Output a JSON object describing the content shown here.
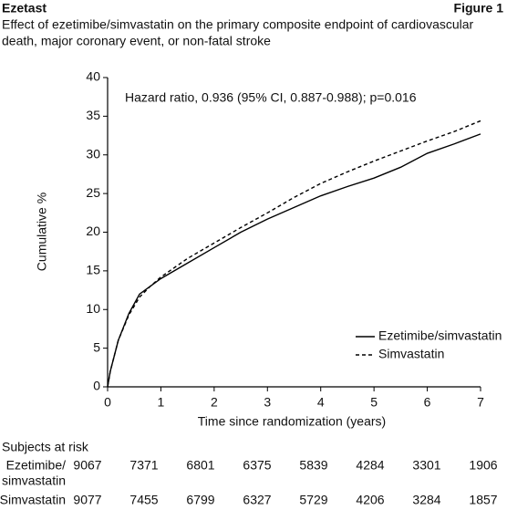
{
  "header": {
    "left": "Ezetast",
    "right": "Figure 1"
  },
  "chart_data": {
    "type": "line",
    "title": [
      "Effect of ezetimibe/simvastatin on the primary composite endpoint of cardiovascular",
      "death, major coronary event, or non-fatal stroke"
    ],
    "annotation": "Hazard ratio, 0.936 (95% CI, 0.887-0.988); p=0.016",
    "x_label": "Time since randomization (years)",
    "y_label": "Cumulative %",
    "x": [
      0,
      0.05,
      0.2,
      0.4,
      0.6,
      0.8,
      1,
      1.5,
      2,
      2.5,
      3,
      3.5,
      4,
      4.5,
      5,
      5.5,
      6,
      6.5,
      7
    ],
    "series": [
      {
        "name": "Ezetimibe/simvastatin",
        "color": "#000000",
        "dash": "solid",
        "values": [
          0,
          2,
          6,
          9.5,
          12,
          13,
          14,
          16,
          18,
          20,
          21.7,
          23.2,
          24.7,
          25.9,
          27,
          28.4,
          30.2,
          31.4,
          32.7
        ]
      },
      {
        "name": "Simvastatin",
        "color": "#000000",
        "dash": "dashed",
        "values": [
          0,
          2,
          6,
          9.3,
          11.6,
          13,
          14.2,
          16.6,
          18.6,
          20.6,
          22.5,
          24.5,
          26.3,
          27.8,
          29.2,
          30.5,
          31.8,
          33,
          34.4
        ]
      }
    ],
    "xlim": [
      0,
      7
    ],
    "xticks": [
      0,
      1,
      2,
      3,
      4,
      5,
      6,
      7
    ],
    "ylim": [
      0,
      40
    ],
    "yticks": [
      0,
      5,
      10,
      15,
      20,
      25,
      30,
      35,
      40
    ],
    "legend": "bottom-right"
  },
  "at_risk": {
    "title": "Subjects at risk",
    "rows": [
      {
        "label": [
          "Ezetimibe/",
          "simvastatin"
        ],
        "values": [
          9067,
          7371,
          6801,
          6375,
          5839,
          4284,
          3301,
          1906
        ]
      },
      {
        "label": [
          "Simvastatin"
        ],
        "values": [
          9077,
          7455,
          6799,
          6327,
          5729,
          4206,
          3284,
          1857
        ]
      }
    ]
  }
}
